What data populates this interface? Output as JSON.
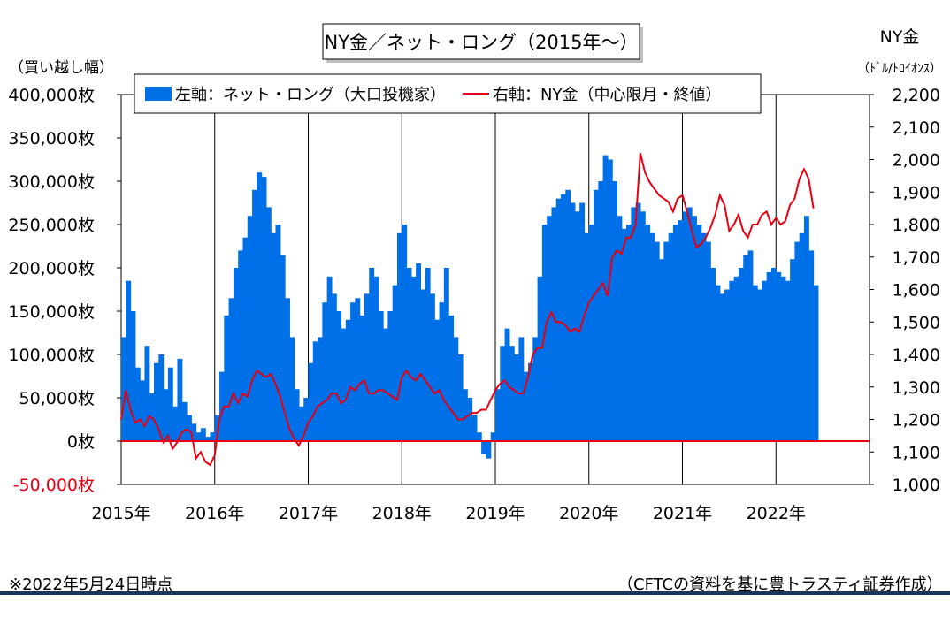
{
  "chart_data": {
    "type": "bar+line",
    "title": "NY金／ネット・ロング（2015年～）",
    "left_axis": {
      "unit_label": "（買い越し幅）",
      "ylim": [
        -50000,
        400000
      ],
      "ticks": [
        -50000,
        0,
        50000,
        100000,
        150000,
        200000,
        250000,
        300000,
        350000,
        400000
      ],
      "tick_labels": [
        "-50,000枚",
        "0枚",
        "50,000枚",
        "100,000枚",
        "150,000枚",
        "200,000枚",
        "250,000枚",
        "300,000枚",
        "350,000枚",
        "400,000枚"
      ]
    },
    "right_axis": {
      "title": "NY金",
      "unit_label": "（ﾄﾞﾙ/ﾄﾛｲｵﾝｽ）",
      "ylim": [
        1000,
        2200
      ],
      "ticks": [
        1000,
        1100,
        1200,
        1300,
        1400,
        1500,
        1600,
        1700,
        1800,
        1900,
        2000,
        2100,
        2200
      ],
      "tick_labels": [
        "1,000",
        "1,100",
        "1,200",
        "1,300",
        "1,400",
        "1,500",
        "1,600",
        "1,700",
        "1,800",
        "1,900",
        "2,000",
        "2,100",
        "2,200"
      ]
    },
    "x_axis": {
      "categories": [
        "2015年",
        "2016年",
        "2017年",
        "2018年",
        "2019年",
        "2020年",
        "2021年",
        "2022年"
      ],
      "xlim": [
        2015.0,
        2023.0
      ]
    },
    "grid": "vertical lines at year boundaries",
    "legend_position": "top",
    "series": [
      {
        "name": "左軸：ネット・ロング（大口投機家）",
        "type": "bar",
        "axis": "left",
        "color": "#0070e8",
        "x": [
          2015.0,
          2015.05,
          2015.1,
          2015.15,
          2015.2,
          2015.25,
          2015.3,
          2015.35,
          2015.4,
          2015.45,
          2015.5,
          2015.55,
          2015.6,
          2015.65,
          2015.7,
          2015.75,
          2015.8,
          2015.85,
          2015.9,
          2015.95,
          2016.0,
          2016.05,
          2016.1,
          2016.15,
          2016.2,
          2016.25,
          2016.3,
          2016.35,
          2016.4,
          2016.45,
          2016.5,
          2016.55,
          2016.6,
          2016.65,
          2016.7,
          2016.75,
          2016.8,
          2016.85,
          2016.9,
          2016.95,
          2017.0,
          2017.05,
          2017.1,
          2017.15,
          2017.2,
          2017.25,
          2017.3,
          2017.35,
          2017.4,
          2017.45,
          2017.5,
          2017.55,
          2017.6,
          2017.65,
          2017.7,
          2017.75,
          2017.8,
          2017.85,
          2017.9,
          2017.95,
          2018.0,
          2018.05,
          2018.1,
          2018.15,
          2018.2,
          2018.25,
          2018.3,
          2018.35,
          2018.4,
          2018.45,
          2018.5,
          2018.55,
          2018.6,
          2018.65,
          2018.7,
          2018.75,
          2018.8,
          2018.85,
          2018.9,
          2018.95,
          2019.0,
          2019.05,
          2019.1,
          2019.15,
          2019.2,
          2019.25,
          2019.3,
          2019.35,
          2019.4,
          2019.45,
          2019.5,
          2019.55,
          2019.6,
          2019.65,
          2019.7,
          2019.75,
          2019.8,
          2019.85,
          2019.9,
          2019.95,
          2020.0,
          2020.05,
          2020.1,
          2020.15,
          2020.2,
          2020.25,
          2020.3,
          2020.35,
          2020.4,
          2020.45,
          2020.5,
          2020.55,
          2020.6,
          2020.65,
          2020.7,
          2020.75,
          2020.8,
          2020.85,
          2020.9,
          2020.95,
          2021.0,
          2021.05,
          2021.1,
          2021.15,
          2021.2,
          2021.25,
          2021.3,
          2021.35,
          2021.4,
          2021.45,
          2021.5,
          2021.55,
          2021.6,
          2021.65,
          2021.7,
          2021.75,
          2021.8,
          2021.85,
          2021.9,
          2021.95,
          2022.0,
          2022.05,
          2022.1,
          2022.15,
          2022.2,
          2022.25,
          2022.3,
          2022.35,
          2022.4
        ],
        "values": [
          120000,
          185000,
          150000,
          85000,
          70000,
          110000,
          55000,
          90000,
          100000,
          60000,
          85000,
          40000,
          95000,
          45000,
          30000,
          20000,
          10000,
          15000,
          5000,
          10000,
          30000,
          80000,
          145000,
          165000,
          200000,
          220000,
          235000,
          260000,
          290000,
          310000,
          305000,
          270000,
          240000,
          250000,
          215000,
          165000,
          120000,
          60000,
          40000,
          50000,
          90000,
          115000,
          120000,
          160000,
          190000,
          170000,
          150000,
          130000,
          140000,
          160000,
          165000,
          145000,
          170000,
          200000,
          190000,
          150000,
          130000,
          150000,
          180000,
          240000,
          250000,
          200000,
          190000,
          205000,
          175000,
          200000,
          170000,
          140000,
          160000,
          200000,
          145000,
          120000,
          100000,
          60000,
          50000,
          30000,
          10000,
          -15000,
          -20000,
          10000,
          60000,
          110000,
          130000,
          110000,
          100000,
          120000,
          80000,
          90000,
          120000,
          190000,
          250000,
          260000,
          270000,
          280000,
          285000,
          290000,
          275000,
          265000,
          275000,
          240000,
          250000,
          290000,
          300000,
          330000,
          325000,
          300000,
          260000,
          245000,
          250000,
          270000,
          275000,
          265000,
          250000,
          240000,
          230000,
          210000,
          230000,
          240000,
          250000,
          255000,
          265000,
          270000,
          260000,
          250000,
          240000,
          230000,
          200000,
          180000,
          170000,
          175000,
          185000,
          190000,
          200000,
          215000,
          220000,
          180000,
          175000,
          185000,
          195000,
          200000,
          195000,
          190000,
          185000,
          210000,
          230000,
          240000,
          260000,
          220000,
          180000
        ]
      },
      {
        "name": "右軸：NY金（中心限月・終値）",
        "type": "line",
        "axis": "right",
        "color": "#e60012",
        "x": [
          2015.0,
          2015.05,
          2015.1,
          2015.15,
          2015.2,
          2015.25,
          2015.3,
          2015.35,
          2015.4,
          2015.45,
          2015.5,
          2015.55,
          2015.6,
          2015.65,
          2015.7,
          2015.75,
          2015.8,
          2015.85,
          2015.9,
          2015.95,
          2016.0,
          2016.05,
          2016.1,
          2016.15,
          2016.2,
          2016.25,
          2016.3,
          2016.35,
          2016.4,
          2016.45,
          2016.5,
          2016.55,
          2016.6,
          2016.65,
          2016.7,
          2016.75,
          2016.8,
          2016.85,
          2016.9,
          2016.95,
          2017.0,
          2017.05,
          2017.1,
          2017.15,
          2017.2,
          2017.25,
          2017.3,
          2017.35,
          2017.4,
          2017.45,
          2017.5,
          2017.55,
          2017.6,
          2017.65,
          2017.7,
          2017.75,
          2017.8,
          2017.85,
          2017.9,
          2017.95,
          2018.0,
          2018.05,
          2018.1,
          2018.15,
          2018.2,
          2018.25,
          2018.3,
          2018.35,
          2018.4,
          2018.45,
          2018.5,
          2018.55,
          2018.6,
          2018.65,
          2018.7,
          2018.75,
          2018.8,
          2018.85,
          2018.9,
          2018.95,
          2019.0,
          2019.05,
          2019.1,
          2019.15,
          2019.2,
          2019.25,
          2019.3,
          2019.35,
          2019.4,
          2019.45,
          2019.5,
          2019.55,
          2019.6,
          2019.65,
          2019.7,
          2019.75,
          2019.8,
          2019.85,
          2019.9,
          2019.95,
          2020.0,
          2020.05,
          2020.1,
          2020.15,
          2020.2,
          2020.25,
          2020.3,
          2020.35,
          2020.4,
          2020.45,
          2020.5,
          2020.55,
          2020.6,
          2020.65,
          2020.7,
          2020.75,
          2020.8,
          2020.85,
          2020.9,
          2020.95,
          2021.0,
          2021.05,
          2021.1,
          2021.15,
          2021.2,
          2021.25,
          2021.3,
          2021.35,
          2021.4,
          2021.45,
          2021.5,
          2021.55,
          2021.6,
          2021.65,
          2021.7,
          2021.75,
          2021.8,
          2021.85,
          2021.9,
          2021.95,
          2022.0,
          2022.05,
          2022.1,
          2022.15,
          2022.2,
          2022.25,
          2022.3,
          2022.35,
          2022.4
        ],
        "values": [
          1200,
          1290,
          1230,
          1190,
          1200,
          1180,
          1210,
          1200,
          1170,
          1130,
          1150,
          1110,
          1130,
          1160,
          1170,
          1160,
          1080,
          1100,
          1070,
          1060,
          1090,
          1200,
          1240,
          1240,
          1280,
          1250,
          1280,
          1270,
          1320,
          1350,
          1340,
          1330,
          1340,
          1310,
          1270,
          1220,
          1170,
          1140,
          1120,
          1150,
          1190,
          1210,
          1240,
          1250,
          1260,
          1280,
          1280,
          1250,
          1260,
          1300,
          1290,
          1310,
          1320,
          1280,
          1280,
          1290,
          1290,
          1280,
          1270,
          1260,
          1330,
          1350,
          1330,
          1320,
          1340,
          1320,
          1300,
          1280,
          1290,
          1260,
          1240,
          1220,
          1200,
          1200,
          1210,
          1220,
          1220,
          1230,
          1230,
          1260,
          1290,
          1310,
          1320,
          1300,
          1290,
          1280,
          1280,
          1330,
          1400,
          1420,
          1420,
          1500,
          1530,
          1500,
          1500,
          1490,
          1470,
          1480,
          1470,
          1520,
          1560,
          1580,
          1600,
          1620,
          1580,
          1700,
          1720,
          1710,
          1760,
          1760,
          1800,
          2020,
          1960,
          1930,
          1910,
          1890,
          1880,
          1870,
          1840,
          1880,
          1890,
          1840,
          1780,
          1730,
          1740,
          1760,
          1790,
          1830,
          1890,
          1860,
          1780,
          1800,
          1830,
          1780,
          1760,
          1800,
          1800,
          1830,
          1840,
          1800,
          1820,
          1800,
          1810,
          1860,
          1880,
          1940,
          1970,
          1940,
          1850
        ]
      }
    ]
  },
  "legend": {
    "bar_label": "左軸：ネット・ロング（大口投機家）",
    "line_label": "右軸：NY金（中心限月・終値）"
  },
  "footer": {
    "note": "※2022年5月24日時点",
    "source": "（CFTCの資料を基に豊トラスティ証券作成）"
  },
  "colors": {
    "bar": "#0070e8",
    "line": "#e60012",
    "zero_line": "#e60012",
    "negative_tick_label": "#e60012",
    "footer_rule": "#17375e"
  }
}
